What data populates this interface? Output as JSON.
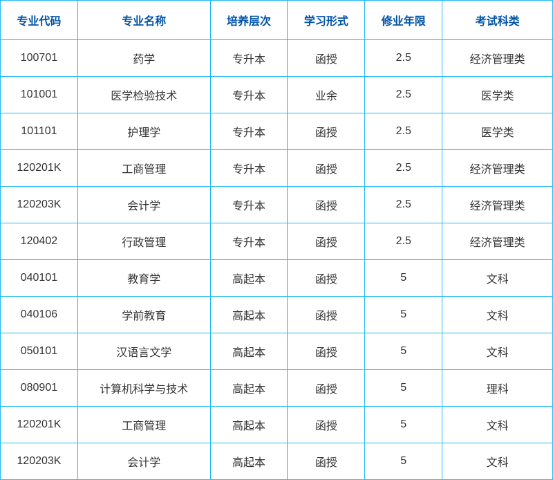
{
  "table": {
    "border_color": "#1eb9ee",
    "header_text_color": "#0052a5",
    "body_text_color": "#333333",
    "background_color": "#ffffff",
    "header_fontsize": 16,
    "body_fontsize": 16,
    "columns": [
      {
        "key": "code",
        "label": "专业代码",
        "width": "14%"
      },
      {
        "key": "name",
        "label": "专业名称",
        "width": "24%"
      },
      {
        "key": "level",
        "label": "培养层次",
        "width": "14%"
      },
      {
        "key": "mode",
        "label": "学习形式",
        "width": "14%"
      },
      {
        "key": "years",
        "label": "修业年限",
        "width": "14%"
      },
      {
        "key": "exam",
        "label": "考试科类",
        "width": "20%"
      }
    ],
    "rows": [
      {
        "code": "100701",
        "name": "药学",
        "level": "专升本",
        "mode": "函授",
        "years": "2.5",
        "exam": "经济管理类"
      },
      {
        "code": "101001",
        "name": "医学检验技术",
        "level": "专升本",
        "mode": "业余",
        "years": "2.5",
        "exam": "医学类"
      },
      {
        "code": "101101",
        "name": "护理学",
        "level": "专升本",
        "mode": "函授",
        "years": "2.5",
        "exam": "医学类"
      },
      {
        "code": "120201K",
        "name": "工商管理",
        "level": "专升本",
        "mode": "函授",
        "years": "2.5",
        "exam": "经济管理类"
      },
      {
        "code": "120203K",
        "name": "会计学",
        "level": "专升本",
        "mode": "函授",
        "years": "2.5",
        "exam": "经济管理类"
      },
      {
        "code": "120402",
        "name": "行政管理",
        "level": "专升本",
        "mode": "函授",
        "years": "2.5",
        "exam": "经济管理类"
      },
      {
        "code": "040101",
        "name": "教育学",
        "level": "高起本",
        "mode": "函授",
        "years": "5",
        "exam": "文科"
      },
      {
        "code": "040106",
        "name": "学前教育",
        "level": "高起本",
        "mode": "函授",
        "years": "5",
        "exam": "文科"
      },
      {
        "code": "050101",
        "name": "汉语言文学",
        "level": "高起本",
        "mode": "函授",
        "years": "5",
        "exam": "文科"
      },
      {
        "code": "080901",
        "name": "计算机科学与技术",
        "level": "高起本",
        "mode": "函授",
        "years": "5",
        "exam": "理科"
      },
      {
        "code": "120201K",
        "name": "工商管理",
        "level": "高起本",
        "mode": "函授",
        "years": "5",
        "exam": "文科"
      },
      {
        "code": "120203K",
        "name": "会计学",
        "level": "高起本",
        "mode": "函授",
        "years": "5",
        "exam": "文科"
      }
    ]
  }
}
